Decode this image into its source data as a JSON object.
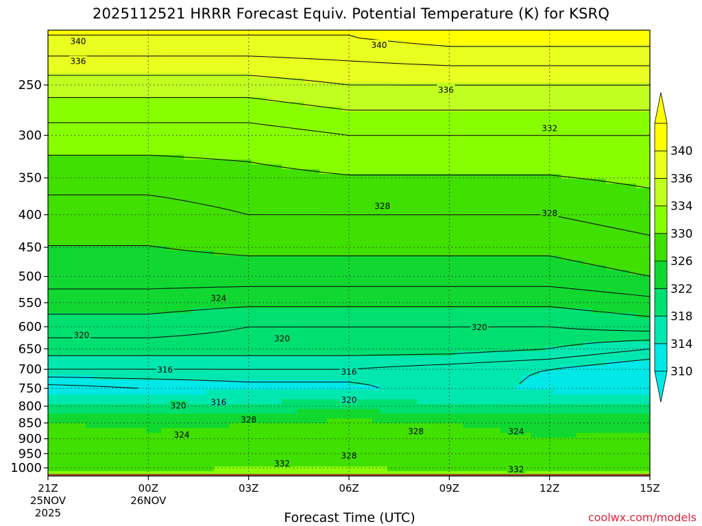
{
  "title": "2025112521 HRRR Forecast Equiv. Potential Temperature (K) for KSRQ",
  "xlabel": "Forecast Time (UTC)",
  "credit": "coolwx.com/models",
  "colors": {
    "background": "#ffffff",
    "ground": "#a0522d",
    "gridline": "#333333",
    "contour": "#111111",
    "credit": "#e0203c"
  },
  "chart_data": {
    "type": "contour",
    "title": "2025112521 HRRR Forecast Equiv. Potential Temperature (K) for KSRQ",
    "xlabel": "Forecast Time (UTC)",
    "ylabel": "",
    "variable": "Equivalent Potential Temperature (K)",
    "y_axis": {
      "scale": "log-pressure",
      "inverted": true,
      "range_hpa": [
        1030,
        205
      ],
      "ticks": [
        250,
        300,
        350,
        400,
        450,
        500,
        550,
        600,
        650,
        700,
        750,
        800,
        850,
        900,
        950,
        1000
      ]
    },
    "x_axis": {
      "range_hours": [
        0,
        18
      ],
      "ticks": [
        {
          "hour": 0,
          "lines": [
            "21Z",
            "25NOV",
            "2025"
          ]
        },
        {
          "hour": 3,
          "lines": [
            "00Z",
            "26NOV"
          ]
        },
        {
          "hour": 6,
          "lines": [
            "03Z"
          ]
        },
        {
          "hour": 9,
          "lines": [
            "06Z"
          ]
        },
        {
          "hour": 12,
          "lines": [
            "09Z"
          ]
        },
        {
          "hour": 15,
          "lines": [
            "12Z"
          ]
        },
        {
          "hour": 18,
          "lines": [
            "15Z"
          ]
        }
      ]
    },
    "grid": true,
    "colorbar": {
      "placement": "right",
      "levels": [
        310,
        314,
        318,
        322,
        326,
        330,
        334,
        336,
        340
      ],
      "colors": [
        "#00e8e8",
        "#00e8b0",
        "#00e070",
        "#10d830",
        "#40e000",
        "#88ff00",
        "#c0ff20",
        "#e8ff20",
        "#ffff00"
      ],
      "extend": "both"
    },
    "profile_hours": [
      0,
      3,
      6,
      9,
      12,
      15,
      18
    ],
    "profiles": [
      {
        "p": 1020,
        "values": [
          330,
          331,
          332,
          332,
          331,
          331,
          330
        ]
      },
      {
        "p": 1000,
        "values": [
          328,
          329,
          330,
          330,
          329,
          328,
          327
        ]
      },
      {
        "p": 950,
        "values": [
          329,
          329,
          329,
          328,
          328,
          328,
          328
        ]
      },
      {
        "p": 900,
        "values": [
          328,
          327,
          327,
          328,
          327,
          326,
          327
        ]
      },
      {
        "p": 850,
        "values": [
          326,
          325,
          326,
          327,
          326,
          325,
          325
        ]
      },
      {
        "p": 800,
        "values": [
          320,
          320,
          319,
          321,
          318,
          318,
          318
        ]
      },
      {
        "p": 750,
        "values": [
          311,
          312,
          313,
          313,
          316,
          313,
          312
        ]
      },
      {
        "p": 700,
        "values": [
          316,
          316,
          316,
          316,
          315,
          314,
          312
        ]
      },
      {
        "p": 650,
        "values": [
          319,
          319,
          319,
          319,
          319,
          318,
          316
        ]
      },
      {
        "p": 600,
        "values": [
          321,
          321,
          320,
          320,
          320,
          320,
          321
        ]
      },
      {
        "p": 500,
        "values": [
          325,
          325,
          325,
          325,
          325,
          325,
          326
        ]
      },
      {
        "p": 400,
        "values": [
          327,
          327,
          328,
          328,
          328,
          328,
          329
        ]
      },
      {
        "p": 300,
        "values": [
          331,
          331,
          331,
          332,
          332,
          332,
          332
        ]
      },
      {
        "p": 250,
        "values": [
          335,
          335,
          335,
          336,
          336,
          336,
          336
        ]
      },
      {
        "p": 210,
        "values": [
          340,
          340,
          340,
          340,
          341,
          341,
          341
        ]
      }
    ],
    "contour_labels": [
      {
        "text": "340",
        "hour": 0.9,
        "p": 213
      },
      {
        "text": "340",
        "hour": 9.9,
        "p": 216
      },
      {
        "text": "336",
        "hour": 0.9,
        "p": 229
      },
      {
        "text": "336",
        "hour": 11.9,
        "p": 254
      },
      {
        "text": "332",
        "hour": 15.0,
        "p": 292
      },
      {
        "text": "328",
        "hour": 10.0,
        "p": 387
      },
      {
        "text": "328",
        "hour": 15.0,
        "p": 397
      },
      {
        "text": "324",
        "hour": 5.1,
        "p": 540
      },
      {
        "text": "320",
        "hour": 1.0,
        "p": 617
      },
      {
        "text": "320",
        "hour": 7.0,
        "p": 625
      },
      {
        "text": "320",
        "hour": 12.9,
        "p": 600
      },
      {
        "text": "316",
        "hour": 3.5,
        "p": 700
      },
      {
        "text": "316",
        "hour": 9.0,
        "p": 705
      },
      {
        "text": "320",
        "hour": 3.9,
        "p": 797
      },
      {
        "text": "316",
        "hour": 5.1,
        "p": 787
      },
      {
        "text": "320",
        "hour": 9.0,
        "p": 780
      },
      {
        "text": "328",
        "hour": 6.0,
        "p": 838
      },
      {
        "text": "324",
        "hour": 4.0,
        "p": 885
      },
      {
        "text": "328",
        "hour": 11.0,
        "p": 875
      },
      {
        "text": "324",
        "hour": 14.0,
        "p": 875
      },
      {
        "text": "328",
        "hour": 9.0,
        "p": 955
      },
      {
        "text": "332",
        "hour": 7.0,
        "p": 982
      },
      {
        "text": "332",
        "hour": 14.0,
        "p": 1004
      }
    ],
    "ground": {
      "from_p": 1022,
      "to_p": 1030
    }
  }
}
